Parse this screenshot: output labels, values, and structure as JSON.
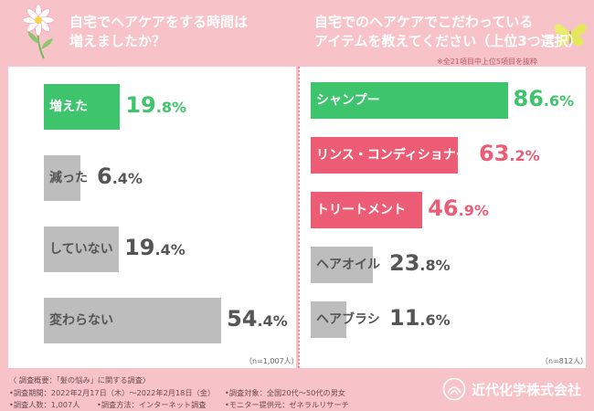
{
  "colors": {
    "background": "#f8c3c8",
    "green": "#3ec46d",
    "pink": "#ec5c74",
    "gray": "#bdbdbd",
    "panel": "#ffffff"
  },
  "left_title": [
    "自宅でヘアケアをする時間は",
    "増えましたか？"
  ],
  "right_title": [
    "自宅でのヘアケアでこだわっている",
    "アイテムを教えてください（上位3つ選択）"
  ],
  "right_subnote": "※全21項目中上位5項目を抜粋",
  "chart_data": [
    {
      "type": "bar",
      "orientation": "horizontal",
      "title": "自宅でヘアケアをする時間は増えましたか？",
      "categories": [
        "増えた",
        "減った",
        "していない",
        "変わらない"
      ],
      "values": [
        19.8,
        6.4,
        19.4,
        54.4
      ],
      "value_labels": [
        [
          "19",
          ".8%"
        ],
        [
          "6",
          ".4%"
        ],
        [
          "19",
          ".4%"
        ],
        [
          "54",
          ".4%"
        ]
      ],
      "styles": [
        "green",
        "gray",
        "gray",
        "gray"
      ],
      "unit": "%",
      "n": "（n=1,007人）"
    },
    {
      "type": "bar",
      "orientation": "horizontal",
      "title": "自宅でのヘアケアでこだわっているアイテムを教えてください（上位3つ選択）",
      "categories": [
        "シャンプー",
        "リンス・コンディショナー",
        "トリートメント",
        "ヘアオイル",
        "ヘアブラシ"
      ],
      "values": [
        86.6,
        63.2,
        46.9,
        23.8,
        11.6
      ],
      "value_labels": [
        [
          "86",
          ".6%"
        ],
        [
          "63",
          ".2%"
        ],
        [
          "46",
          ".9%"
        ],
        [
          "23",
          ".8%"
        ],
        [
          "11",
          ".6%"
        ]
      ],
      "styles": [
        "green",
        "pink",
        "pink",
        "gray",
        "gray"
      ],
      "unit": "%",
      "n": "（n=812人）"
    }
  ],
  "footer": {
    "lines": [
      "〈 調査概要：「髪の悩み」に関する調査〉",
      "•調査期間：2022年2月17日（木）〜2022年2月18日（金）",
      "•調査対象：全国20代〜50代の男女",
      "•調査人数：1,007人",
      "•調査方法：インターネット調査",
      "•モニター提供元：ゼネラルリサーチ"
    ],
    "company": "近代化学株式会社"
  },
  "icons": [
    "flower-icon",
    "butterfly-icon",
    "company-logo-icon"
  ]
}
